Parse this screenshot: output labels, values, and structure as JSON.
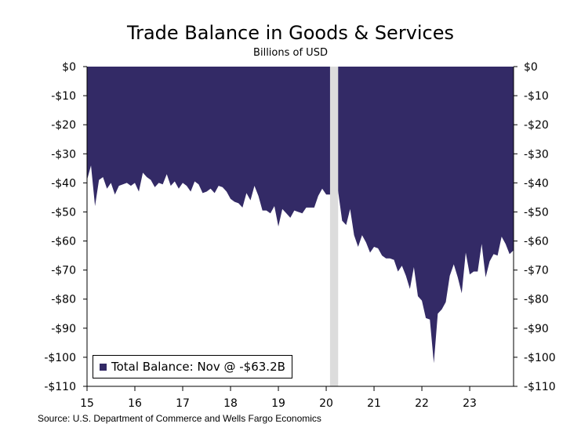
{
  "title": "Trade Balance in Goods & Services",
  "subtitle": "Billions of USD",
  "source": "Source: U.S. Department of Commerce and Wells Fargo Economics",
  "colors": {
    "series": "#332a66",
    "recession": "#dcdcdc"
  },
  "chart_data": {
    "type": "area",
    "ylim": [
      -110,
      0
    ],
    "yticks": [
      0,
      -10,
      -20,
      -30,
      -40,
      -50,
      -60,
      -70,
      -80,
      -90,
      -100,
      -110
    ],
    "ytick_labels": [
      "$0",
      "-$10",
      "-$20",
      "-$30",
      "-$40",
      "-$50",
      "-$60",
      "-$70",
      "-$80",
      "-$90",
      "-$100",
      "-$110"
    ],
    "xlim": [
      2015.0,
      2023.917
    ],
    "xticks": [
      2015,
      2016,
      2017,
      2018,
      2019,
      2020,
      2021,
      2022,
      2023
    ],
    "xtick_labels": [
      "15",
      "16",
      "17",
      "18",
      "19",
      "20",
      "21",
      "22",
      "23"
    ],
    "recession": [
      2020.08,
      2020.25
    ],
    "legend": {
      "position": "bottom-left",
      "label": "Total Balance: Nov @ -$63.2B"
    },
    "grid": false,
    "series": [
      {
        "x": [
          2015.0,
          2015.083,
          2015.167,
          2015.25,
          2015.333,
          2015.417,
          2015.5,
          2015.583,
          2015.667,
          2015.75,
          2015.833,
          2015.917,
          2016.0,
          2016.083,
          2016.167,
          2016.25,
          2016.333,
          2016.417,
          2016.5,
          2016.583,
          2016.667,
          2016.75,
          2016.833,
          2016.917,
          2017.0,
          2017.083,
          2017.167,
          2017.25,
          2017.333,
          2017.417,
          2017.5,
          2017.583,
          2017.667,
          2017.75,
          2017.833,
          2017.917,
          2018.0,
          2018.083,
          2018.167,
          2018.25,
          2018.333,
          2018.417,
          2018.5,
          2018.583,
          2018.667,
          2018.75,
          2018.833,
          2018.917,
          2019.0,
          2019.083,
          2019.167,
          2019.25,
          2019.333,
          2019.417,
          2019.5,
          2019.583,
          2019.667,
          2019.75,
          2019.833,
          2019.917,
          2020.0,
          2020.083,
          2020.167,
          2020.25,
          2020.333,
          2020.417,
          2020.5,
          2020.583,
          2020.667,
          2020.75,
          2020.833,
          2020.917,
          2021.0,
          2021.083,
          2021.167,
          2021.25,
          2021.333,
          2021.417,
          2021.5,
          2021.583,
          2021.667,
          2021.75,
          2021.833,
          2021.917,
          2022.0,
          2022.083,
          2022.167,
          2022.25,
          2022.333,
          2022.417,
          2022.5,
          2022.583,
          2022.667,
          2022.75,
          2022.833,
          2022.917,
          2023.0,
          2023.083,
          2023.167,
          2023.25,
          2023.333,
          2023.417,
          2023.5,
          2023.583,
          2023.667,
          2023.75,
          2023.833,
          2023.917
        ],
        "values": [
          -39,
          -34,
          -48,
          -39,
          -38,
          -42,
          -40,
          -44,
          -41,
          -40.5,
          -40,
          -41,
          -40,
          -43,
          -36.5,
          -38,
          -39,
          -41.5,
          -40,
          -40.5,
          -37,
          -41,
          -39.5,
          -42,
          -40,
          -41,
          -43,
          -39.5,
          -40.5,
          -43.5,
          -43,
          -42,
          -43.5,
          -41,
          -41.5,
          -43,
          -45.5,
          -46.5,
          -47,
          -48.5,
          -43.5,
          -46,
          -41,
          -44.5,
          -49.5,
          -49.5,
          -50.5,
          -48,
          -55,
          -49,
          -50.5,
          -52,
          -49.5,
          -50,
          -50.5,
          -48.5,
          -48.5,
          -48.5,
          -44.5,
          -42,
          -44,
          -44,
          -40.5,
          -43,
          -53,
          -54.5,
          -49,
          -58,
          -62,
          -58,
          -60.5,
          -64,
          -62,
          -62.5,
          -65,
          -66,
          -66,
          -66.5,
          -70.5,
          -68.5,
          -72,
          -76.5,
          -69,
          -79,
          -80.5,
          -86.5,
          -87,
          -102,
          -85,
          -83.5,
          -81,
          -72,
          -68,
          -72.5,
          -78,
          -64,
          -71.5,
          -70.5,
          -70.5,
          -61,
          -72.5,
          -67,
          -64.5,
          -65,
          -58.5,
          -61,
          -64.5,
          -63.2
        ]
      }
    ]
  }
}
